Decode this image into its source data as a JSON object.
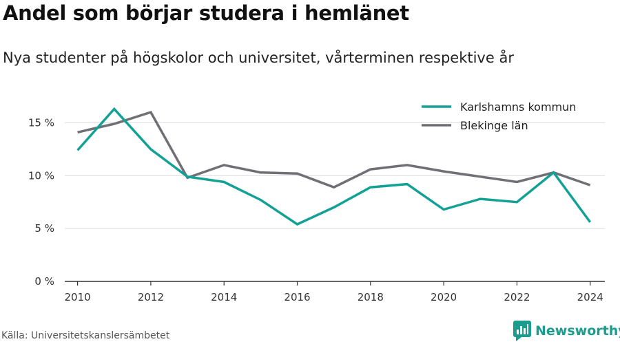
{
  "title": "Andel som börjar studera i hemlänet",
  "subtitle": "Nya studenter på högskolor och universitet, vårterminen respektive år",
  "source": "Källa: Universitetskanslersämbetet",
  "brand": {
    "name": "Newsworthy",
    "icon": "newsworthy-logo-icon",
    "color": "#1a9c8e"
  },
  "chart_data": {
    "type": "line",
    "title": "",
    "xlabel": "",
    "ylabel": "",
    "x": [
      2010,
      2011,
      2012,
      2013,
      2014,
      2015,
      2016,
      2017,
      2018,
      2019,
      2020,
      2021,
      2022,
      2023,
      2024
    ],
    "x_ticks": [
      2010,
      2012,
      2014,
      2016,
      2018,
      2020,
      2022,
      2024
    ],
    "x_tick_labels": [
      "2010",
      "2012",
      "2014",
      "2016",
      "2018",
      "2020",
      "2022",
      "2024"
    ],
    "y_ticks": [
      0,
      5,
      10,
      15
    ],
    "y_tick_labels": [
      "0 %",
      "5 %",
      "10 %",
      "15 %"
    ],
    "ylim": [
      0,
      17.5
    ],
    "xlim": [
      2009.65,
      2024.4
    ],
    "grid": true,
    "legend_position": "top-right",
    "series": [
      {
        "name": "Karlshamns kommun",
        "color": "#13a196",
        "values": [
          12.4,
          16.3,
          12.5,
          9.9,
          9.4,
          7.7,
          5.4,
          7.0,
          8.9,
          9.2,
          6.8,
          7.8,
          7.5,
          10.3,
          5.6
        ]
      },
      {
        "name": "Blekinge län",
        "color": "#6f6f75",
        "values": [
          14.1,
          14.9,
          16.0,
          9.8,
          11.0,
          10.3,
          10.2,
          8.9,
          10.6,
          11.0,
          10.4,
          9.9,
          9.4,
          10.3,
          9.1
        ]
      }
    ]
  }
}
